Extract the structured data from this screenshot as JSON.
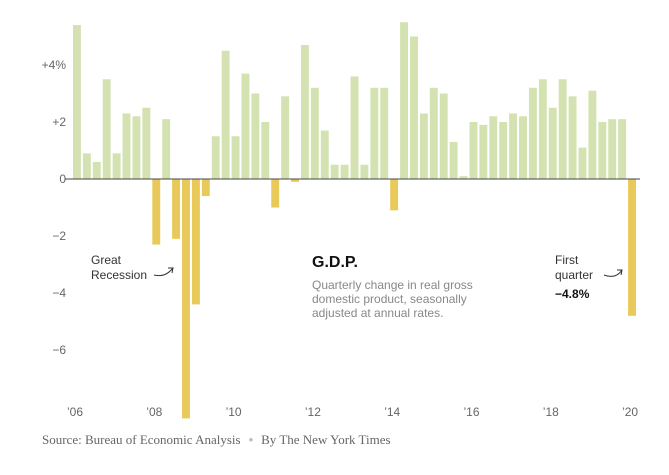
{
  "chart_data": {
    "type": "bar",
    "title": "G.D.P.",
    "description": [
      "Quarterly change in real gross",
      "domestic product, seasonally",
      "adjusted at annual rates."
    ],
    "ylabel": "",
    "xlabel": "",
    "ylim": [
      -8,
      5.8
    ],
    "y_ticks": [
      {
        "value": 4,
        "label": "+4%"
      },
      {
        "value": 2,
        "label": "+2"
      },
      {
        "value": 0,
        "label": "0"
      },
      {
        "value": -2,
        "label": "−2"
      },
      {
        "value": -4,
        "label": "−4"
      },
      {
        "value": -6,
        "label": "−6"
      }
    ],
    "x_ticks": [
      {
        "quarter_index": 0,
        "label": "’06"
      },
      {
        "quarter_index": 8,
        "label": "’08"
      },
      {
        "quarter_index": 16,
        "label": "’10"
      },
      {
        "quarter_index": 24,
        "label": "’12"
      },
      {
        "quarter_index": 32,
        "label": "’14"
      },
      {
        "quarter_index": 40,
        "label": "’16"
      },
      {
        "quarter_index": 48,
        "label": "’18"
      },
      {
        "quarter_index": 56,
        "label": "’20"
      }
    ],
    "categories": [
      "2006 Q1",
      "2006 Q2",
      "2006 Q3",
      "2006 Q4",
      "2007 Q1",
      "2007 Q2",
      "2007 Q3",
      "2007 Q4",
      "2008 Q1",
      "2008 Q2",
      "2008 Q3",
      "2008 Q4",
      "2009 Q1",
      "2009 Q2",
      "2009 Q3",
      "2009 Q4",
      "2010 Q1",
      "2010 Q2",
      "2010 Q3",
      "2010 Q4",
      "2011 Q1",
      "2011 Q2",
      "2011 Q3",
      "2011 Q4",
      "2012 Q1",
      "2012 Q2",
      "2012 Q3",
      "2012 Q4",
      "2013 Q1",
      "2013 Q2",
      "2013 Q3",
      "2013 Q4",
      "2014 Q1",
      "2014 Q2",
      "2014 Q3",
      "2014 Q4",
      "2015 Q1",
      "2015 Q2",
      "2015 Q3",
      "2015 Q4",
      "2016 Q1",
      "2016 Q2",
      "2016 Q3",
      "2016 Q4",
      "2017 Q1",
      "2017 Q2",
      "2017 Q3",
      "2017 Q4",
      "2018 Q1",
      "2018 Q2",
      "2018 Q3",
      "2018 Q4",
      "2019 Q1",
      "2019 Q2",
      "2019 Q3",
      "2019 Q4",
      "2020 Q1"
    ],
    "values": [
      5.4,
      0.9,
      0.6,
      3.5,
      0.9,
      2.3,
      2.2,
      2.5,
      -2.3,
      2.1,
      -2.1,
      -8.4,
      -4.4,
      -0.6,
      1.5,
      4.5,
      1.5,
      3.7,
      3.0,
      2.0,
      -1.0,
      2.9,
      -0.1,
      4.7,
      3.2,
      1.7,
      0.5,
      0.5,
      3.6,
      0.5,
      3.2,
      3.2,
      -1.1,
      5.5,
      5.0,
      2.3,
      3.2,
      3.0,
      1.3,
      0.1,
      2.0,
      1.9,
      2.2,
      2.0,
      2.3,
      2.2,
      3.2,
      3.5,
      2.5,
      3.5,
      2.9,
      1.1,
      3.1,
      2.0,
      2.1,
      2.1,
      -4.8
    ],
    "colors": {
      "positive": "#d3e2b0",
      "negative": "#e8c95a",
      "axis": "#444444",
      "tick_text": "#666666"
    },
    "grid": false
  },
  "annotations": {
    "great_recession": [
      "Great",
      "Recession"
    ],
    "first_quarter": [
      "First",
      "quarter"
    ],
    "first_quarter_value": "−4.8%"
  },
  "footer": {
    "source": "Source: Bureau of Economic Analysis",
    "separator": "•",
    "byline": "By The New York Times"
  }
}
